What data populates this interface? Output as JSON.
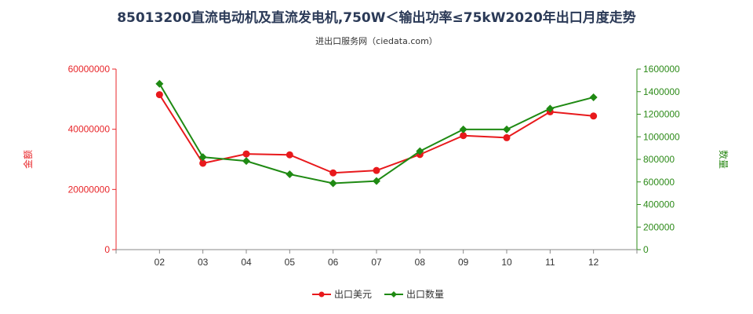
{
  "title": "85013200直流电动机及直流发电机,750W＜输出功率≤75kW2020年出口月度走势",
  "source": "进出口服务网（ciedata.com）",
  "colors": {
    "left_axis": "#e8262a",
    "right_axis": "#2e8b1a",
    "series_value": "#e8191c",
    "series_qty": "#1f8a13"
  },
  "chart_data": {
    "type": "line",
    "categories": [
      "02",
      "03",
      "04",
      "05",
      "06",
      "07",
      "08",
      "09",
      "10",
      "11",
      "12"
    ],
    "y_left": {
      "label": "金额",
      "ylim": [
        0,
        60000000
      ],
      "ticks": [
        "0",
        "20000000",
        "40000000",
        "60000000"
      ]
    },
    "y_right": {
      "label": "数量",
      "ylim": [
        0,
        1600000
      ],
      "ticks": [
        "0",
        "200000",
        "400000",
        "600000",
        "800000",
        "1000000",
        "1200000",
        "1400000",
        "1600000"
      ]
    },
    "series": [
      {
        "name": "出口美元",
        "axis": "left",
        "marker": "circle",
        "values": [
          51500000,
          28700000,
          31800000,
          31500000,
          25500000,
          26300000,
          31600000,
          37900000,
          37200000,
          45800000,
          44400000
        ]
      },
      {
        "name": "出口数量",
        "axis": "right",
        "marker": "diamond",
        "values": [
          1470000,
          820000,
          785000,
          668000,
          588000,
          608000,
          872000,
          1065000,
          1065000,
          1250000,
          1350000
        ]
      }
    ],
    "legend": "bottom-center",
    "grid": false
  }
}
